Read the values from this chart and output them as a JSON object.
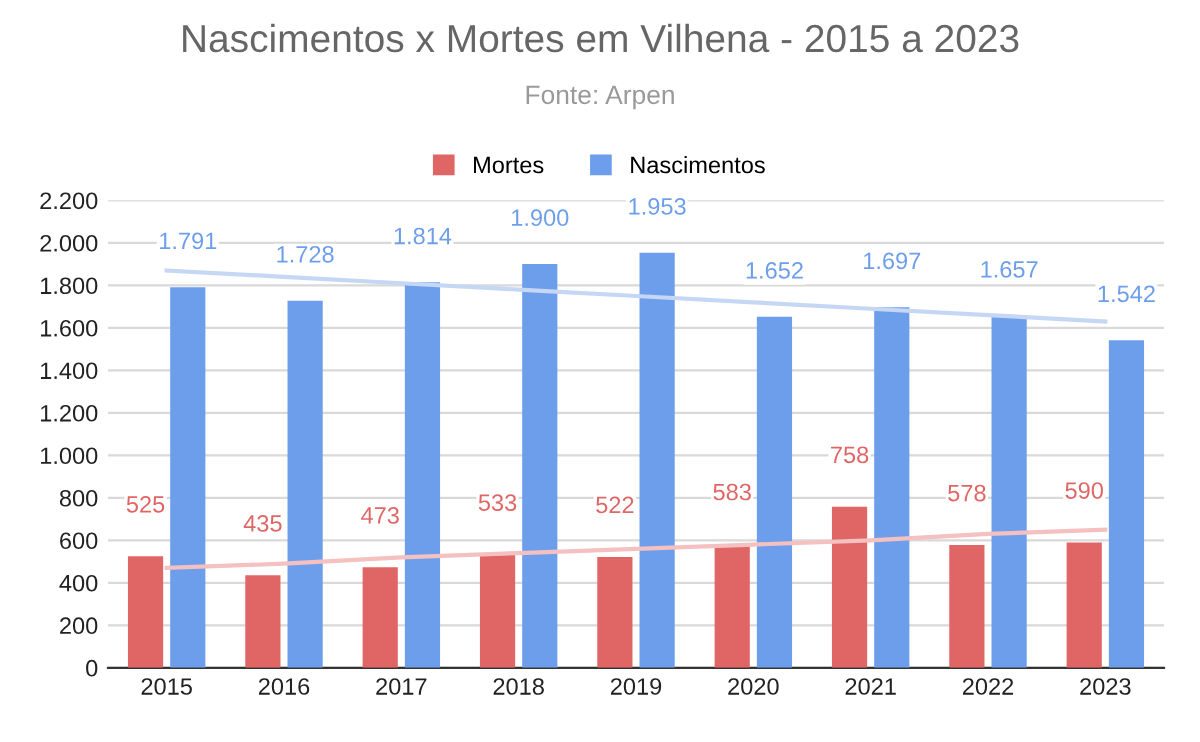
{
  "chart_data": {
    "type": "bar",
    "title": "Nascimentos x Mortes em Vilhena - 2015 a 2023",
    "subtitle": "Fonte: Arpen",
    "categories": [
      "2015",
      "2016",
      "2017",
      "2018",
      "2019",
      "2020",
      "2021",
      "2022",
      "2023"
    ],
    "series": [
      {
        "name": "Mortes",
        "color": "#e06666",
        "values": [
          525,
          435,
          473,
          533,
          522,
          583,
          758,
          578,
          590
        ],
        "value_labels": [
          "525",
          "435",
          "473",
          "533",
          "522",
          "583",
          "758",
          "578",
          "590"
        ]
      },
      {
        "name": "Nascimentos",
        "color": "#6d9eeb",
        "values": [
          1791,
          1728,
          1814,
          1900,
          1953,
          1652,
          1697,
          1657,
          1542
        ],
        "value_labels": [
          "1.791",
          "1.728",
          "1.814",
          "1.900",
          "1.953",
          "1.652",
          "1.697",
          "1.657",
          "1.542"
        ]
      },
      {
        "type": "line",
        "color": "#f4c0c0",
        "values": [
          470,
          490,
          520,
          540,
          560,
          580,
          600,
          630,
          650
        ]
      },
      {
        "type": "line",
        "color": "#c5d7f5",
        "values": [
          1870,
          1840,
          1810,
          1780,
          1750,
          1720,
          1690,
          1660,
          1630
        ]
      }
    ],
    "ylim": [
      0,
      2200
    ],
    "yticks": [
      {
        "value": 0,
        "label": "0"
      },
      {
        "value": 200,
        "label": "200"
      },
      {
        "value": 400,
        "label": "400"
      },
      {
        "value": 600,
        "label": "600"
      },
      {
        "value": 800,
        "label": "800"
      },
      {
        "value": 1000,
        "label": "1.000"
      },
      {
        "value": 1200,
        "label": "1.200"
      },
      {
        "value": 1400,
        "label": "1.400"
      },
      {
        "value": 1600,
        "label": "1.600"
      },
      {
        "value": 1800,
        "label": "1.800"
      },
      {
        "value": 2000,
        "label": "2.000"
      },
      {
        "value": 2200,
        "label": "2.200"
      }
    ],
    "grid": "y",
    "legend": "top"
  }
}
